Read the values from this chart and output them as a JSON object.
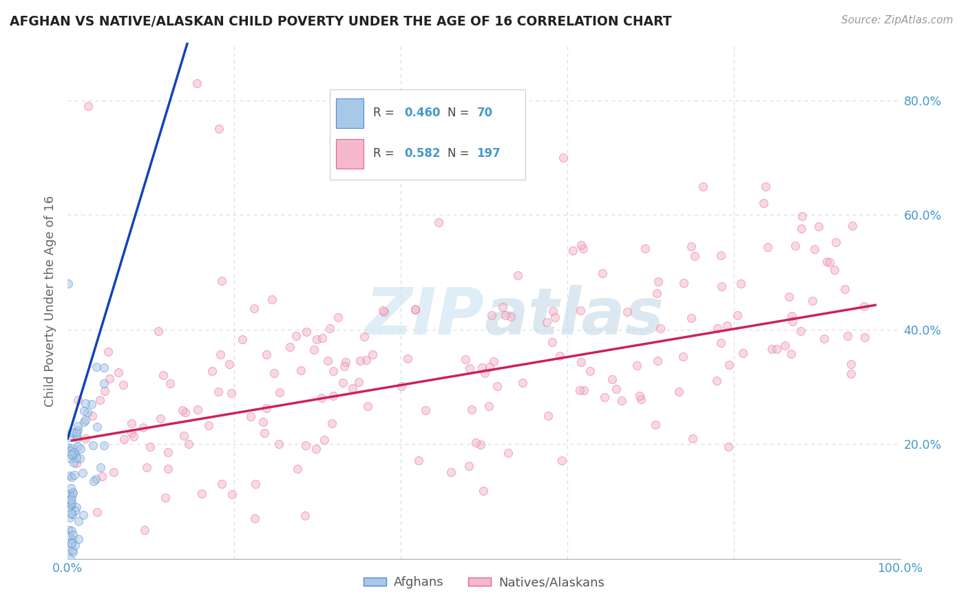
{
  "title": "AFGHAN VS NATIVE/ALASKAN CHILD POVERTY UNDER THE AGE OF 16 CORRELATION CHART",
  "source": "Source: ZipAtlas.com",
  "ylabel": "Child Poverty Under the Age of 16",
  "xlim": [
    0.0,
    1.0
  ],
  "ylim": [
    0.0,
    0.9
  ],
  "xticks": [
    0.0,
    0.2,
    0.4,
    0.6,
    0.8,
    1.0
  ],
  "xticklabels": [
    "0.0%",
    "",
    "",
    "",
    "",
    "100.0%"
  ],
  "yticks_right": [
    0.2,
    0.4,
    0.6,
    0.8
  ],
  "yticklabels_right": [
    "20.0%",
    "40.0%",
    "60.0%",
    "80.0%"
  ],
  "afghan_color": "#a8c8e8",
  "afghan_edge_color": "#5588cc",
  "native_color": "#f5b8cc",
  "native_edge_color": "#e06888",
  "afghan_line_color": "#1144bb",
  "native_line_color": "#cc2255",
  "dashed_line_color": "#99bbdd",
  "watermark_color": "#d0e4f0",
  "legend_afghan_label": "R = 0.460   N = 70",
  "legend_native_label": "R = 0.582   N = 197",
  "r_afghan": 0.46,
  "n_afghan": 70,
  "r_native": 0.582,
  "n_native": 197,
  "marker_size": 75,
  "marker_alpha": 0.55,
  "title_color": "#222222",
  "tick_color": "#4499cc",
  "ylabel_color": "#666666"
}
